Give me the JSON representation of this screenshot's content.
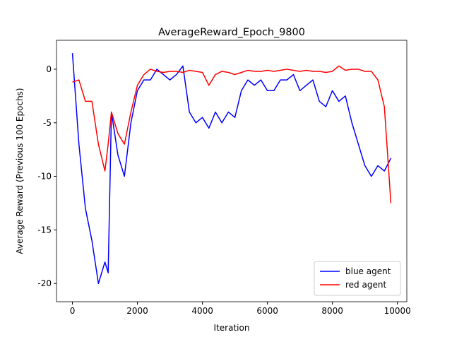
{
  "chart_data": {
    "type": "line",
    "title": "AverageReward_Epoch_9800",
    "x_label": "Iteration",
    "y_label": "Average Reward (Previous 100 Epochs)",
    "x": [
      0,
      200,
      400,
      600,
      800,
      1000,
      1100,
      1200,
      1400,
      1600,
      1800,
      2000,
      2200,
      2400,
      2600,
      2800,
      3000,
      3200,
      3400,
      3600,
      3800,
      4000,
      4200,
      4400,
      4600,
      4800,
      5000,
      5200,
      5400,
      5600,
      5800,
      6000,
      6200,
      6400,
      6600,
      6800,
      7000,
      7200,
      7400,
      7600,
      7800,
      8000,
      8200,
      8400,
      8600,
      8800,
      9000,
      9200,
      9400,
      9600,
      9800
    ],
    "series": [
      {
        "name": "blue agent",
        "color": "#0000ff",
        "values": [
          1.5,
          -7,
          -13,
          -16,
          -20,
          -18,
          -19,
          -4,
          -8,
          -10,
          -5,
          -2,
          -1,
          -1,
          0,
          -0.5,
          -1,
          -0.5,
          0.3,
          -4,
          -5,
          -4.5,
          -5.5,
          -4,
          -5,
          -4,
          -4.5,
          -2,
          -1,
          -1.5,
          -1,
          -2,
          -2,
          -1,
          -1,
          -0.5,
          -2,
          -1.5,
          -1,
          -3,
          -3.5,
          -2,
          -3,
          -2.5,
          -5,
          -7,
          -9,
          -10,
          -9,
          -9.5,
          -8.3
        ]
      },
      {
        "name": "red agent",
        "color": "#ff0000",
        "values": [
          -1.2,
          -1,
          -3,
          -3,
          -7,
          -9.5,
          -7,
          -4,
          -6,
          -7,
          -4,
          -1.5,
          -0.5,
          0,
          -0.2,
          -0.3,
          -0.2,
          -0.2,
          -0.3,
          -0.1,
          -0.2,
          -0.3,
          -1.5,
          -0.5,
          -0.2,
          -0.3,
          -0.5,
          -0.3,
          -0.1,
          -0.2,
          -0.2,
          -0.1,
          -0.2,
          -0.1,
          0,
          -0.1,
          -0.2,
          -0.1,
          -0.2,
          -0.2,
          -0.3,
          -0.2,
          0.3,
          -0.1,
          0,
          0,
          -0.2,
          -0.2,
          -1,
          -3.5,
          -12.5
        ]
      }
    ],
    "xlim": [
      -490,
      10290
    ],
    "ylim": [
      -21.7,
      2.7
    ],
    "xticks": [
      0,
      2000,
      4000,
      6000,
      8000,
      10000
    ],
    "yticks": [
      -20,
      -15,
      -10,
      -5,
      0
    ],
    "grid": false,
    "legend": "lower right"
  }
}
